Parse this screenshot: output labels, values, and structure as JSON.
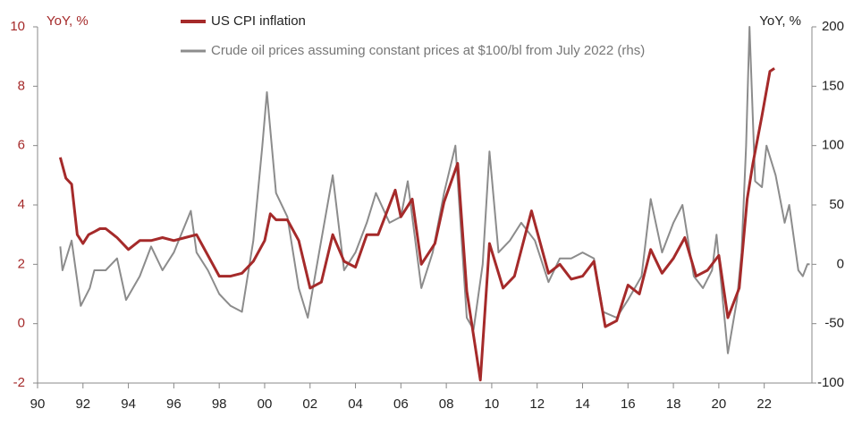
{
  "chart_data": {
    "type": "line",
    "legend": "top",
    "ylabel": "YoY, %",
    "y2label": "YoY, %",
    "xlim": [
      1990,
      2024.1
    ],
    "xticks": [
      {
        "value": 1990,
        "label": "90"
      },
      {
        "value": 1992,
        "label": "92"
      },
      {
        "value": 1994,
        "label": "94"
      },
      {
        "value": 1996,
        "label": "96"
      },
      {
        "value": 1998,
        "label": "98"
      },
      {
        "value": 2000,
        "label": "00"
      },
      {
        "value": 2002,
        "label": "02"
      },
      {
        "value": 2004,
        "label": "04"
      },
      {
        "value": 2006,
        "label": "06"
      },
      {
        "value": 2008,
        "label": "08"
      },
      {
        "value": 2010,
        "label": "10"
      },
      {
        "value": 2012,
        "label": "12"
      },
      {
        "value": 2014,
        "label": "14"
      },
      {
        "value": 2016,
        "label": "16"
      },
      {
        "value": 2018,
        "label": "18"
      },
      {
        "value": 2020,
        "label": "20"
      },
      {
        "value": 2022,
        "label": "22"
      }
    ],
    "ylim": [
      -2,
      10
    ],
    "yticks": [
      -2,
      0,
      2,
      4,
      6,
      8,
      10
    ],
    "y2lim": [
      -100,
      200
    ],
    "y2ticks": [
      -100,
      -50,
      0,
      50,
      100,
      150,
      200
    ],
    "series": [
      {
        "name": "US CPI inflation",
        "color": "#a52a2a",
        "width": 3,
        "x": [
          1991.0,
          1991.25,
          1991.5,
          1991.75,
          1992.0,
          1992.25,
          1992.5,
          1992.75,
          1993.0,
          1993.5,
          1994.0,
          1994.5,
          1995.0,
          1995.5,
          1996.0,
          1996.5,
          1997.0,
          1997.5,
          1998.0,
          1998.5,
          1999.0,
          1999.5,
          2000.0,
          2000.25,
          2000.5,
          2001.0,
          2001.5,
          2002.0,
          2002.5,
          2003.0,
          2003.5,
          2004.0,
          2004.5,
          2005.0,
          2005.75,
          2006.0,
          2006.5,
          2006.9,
          2007.5,
          2007.9,
          2008.5,
          2008.9,
          2009.5,
          2009.9,
          2010.5,
          2011.0,
          2011.75,
          2012.5,
          2013.0,
          2013.5,
          2014.0,
          2014.5,
          2015.0,
          2015.5,
          2016.0,
          2016.5,
          2017.0,
          2017.5,
          2018.0,
          2018.5,
          2019.0,
          2019.5,
          2020.0,
          2020.4,
          2020.9,
          2021.25,
          2021.5,
          2021.9,
          2022.25,
          2022.45
        ],
        "values": [
          5.6,
          4.9,
          4.7,
          3.0,
          2.7,
          3.0,
          3.1,
          3.2,
          3.2,
          2.9,
          2.5,
          2.8,
          2.8,
          2.9,
          2.8,
          2.9,
          3.0,
          2.3,
          1.6,
          1.6,
          1.7,
          2.1,
          2.8,
          3.7,
          3.5,
          3.5,
          2.8,
          1.2,
          1.4,
          3.0,
          2.1,
          1.9,
          3.0,
          3.0,
          4.5,
          3.6,
          4.2,
          2.0,
          2.7,
          4.1,
          5.4,
          1.1,
          -1.9,
          2.7,
          1.2,
          1.6,
          3.8,
          1.7,
          2.0,
          1.5,
          1.6,
          2.1,
          -0.1,
          0.1,
          1.3,
          1.0,
          2.5,
          1.7,
          2.2,
          2.9,
          1.6,
          1.8,
          2.3,
          0.2,
          1.2,
          4.2,
          5.4,
          7.0,
          8.5,
          8.6
        ]
      },
      {
        "name": "Crude oil prices assuming constant prices at $100/bl from July 2022 (rhs)",
        "color": "#8c8c8c",
        "width": 2,
        "axis": "y2",
        "x": [
          1991.0,
          1991.1,
          1991.5,
          1991.9,
          1992.3,
          1992.5,
          1993.0,
          1993.5,
          1993.9,
          1994.5,
          1995.0,
          1995.5,
          1996.0,
          1996.75,
          1997.0,
          1997.5,
          1998.0,
          1998.5,
          1999.0,
          1999.5,
          1999.9,
          2000.1,
          2000.5,
          2001.0,
          2001.5,
          2001.9,
          2002.4,
          2003.0,
          2003.5,
          2004.0,
          2004.5,
          2004.9,
          2005.5,
          2006.0,
          2006.3,
          2006.9,
          2007.4,
          2007.9,
          2008.4,
          2008.9,
          2009.2,
          2009.6,
          2009.9,
          2010.3,
          2010.8,
          2011.3,
          2011.9,
          2012.5,
          2013.0,
          2013.5,
          2014.0,
          2014.5,
          2014.9,
          2015.5,
          2016.0,
          2016.6,
          2017.0,
          2017.5,
          2018.0,
          2018.4,
          2018.9,
          2019.3,
          2019.7,
          2019.9,
          2020.4,
          2020.8,
          2021.0,
          2021.2,
          2021.35,
          2021.6,
          2021.9,
          2022.1,
          2022.5,
          2022.9,
          2023.1,
          2023.5,
          2023.7,
          2023.9,
          2024.0
        ],
        "values": [
          15,
          -5,
          20,
          -35,
          -20,
          -5,
          -5,
          5,
          -30,
          -10,
          15,
          -5,
          10,
          45,
          10,
          -5,
          -25,
          -35,
          -40,
          20,
          100,
          145,
          60,
          40,
          -20,
          -45,
          10,
          75,
          -5,
          10,
          35,
          60,
          35,
          40,
          70,
          -20,
          10,
          60,
          100,
          -45,
          -55,
          0,
          95,
          10,
          20,
          35,
          20,
          -15,
          5,
          5,
          10,
          5,
          -40,
          -45,
          -30,
          -10,
          55,
          10,
          35,
          50,
          -10,
          -20,
          -5,
          25,
          -75,
          -30,
          10,
          100,
          200,
          70,
          65,
          100,
          75,
          35,
          50,
          -5,
          -10,
          0,
          0
        ]
      }
    ]
  }
}
